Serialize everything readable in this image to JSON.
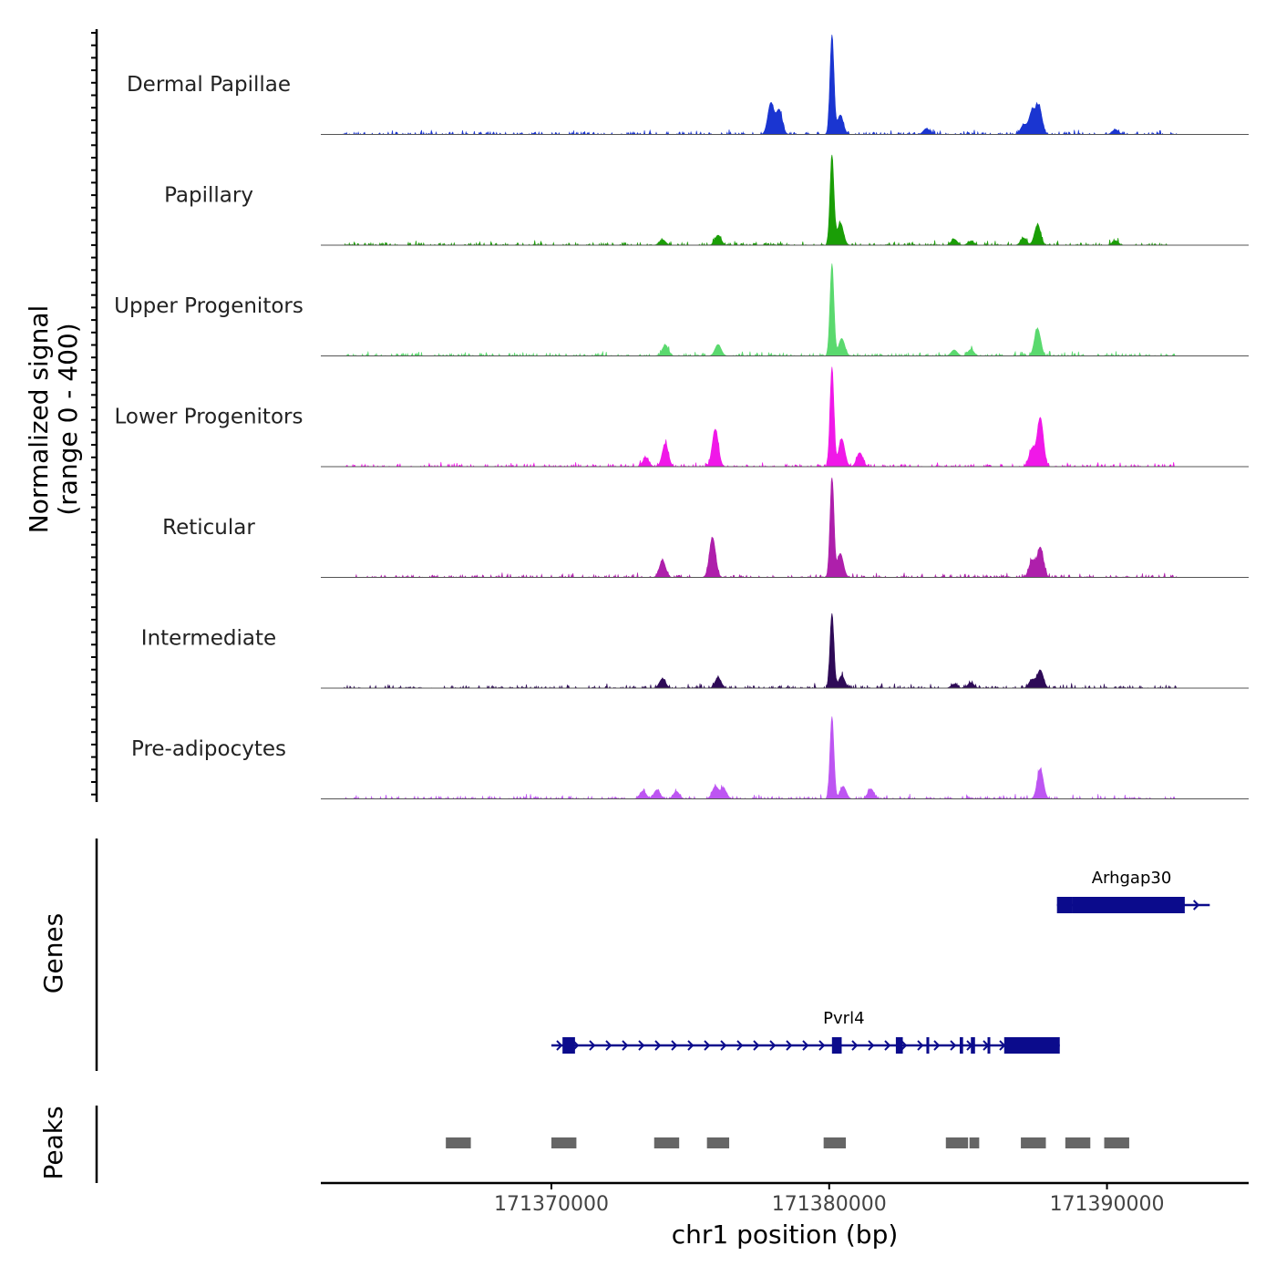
{
  "chart_data": {
    "type": "area",
    "chromosome": "chr1",
    "xlabel": "chr1 position (bp)",
    "xlim": [
      171361700,
      171395100
    ],
    "xticks": [
      171370000,
      171380000,
      171390000
    ],
    "xtick_labels": [
      "171370000",
      "171380000",
      "171390000"
    ],
    "ylabel_line1": "Normalized signal",
    "ylabel_line2": "(range 0 - 400)",
    "ylim": [
      0,
      400
    ],
    "tracks": [
      {
        "name": "Dermal Papillae",
        "color": "#1a35d1",
        "peaks": [
          [
            171377900,
            126
          ],
          [
            171378200,
            98
          ],
          [
            171380100,
            400
          ],
          [
            171380400,
            78
          ],
          [
            171383500,
            24
          ],
          [
            171387000,
            38
          ],
          [
            171387300,
            90
          ],
          [
            171387550,
            112
          ],
          [
            171390300,
            20
          ]
        ]
      },
      {
        "name": "Papillary",
        "color": "#1a9e06",
        "peaks": [
          [
            171374000,
            22
          ],
          [
            171376000,
            40
          ],
          [
            171380100,
            360
          ],
          [
            171380400,
            90
          ],
          [
            171384500,
            24
          ],
          [
            171385100,
            16
          ],
          [
            171387000,
            26
          ],
          [
            171387500,
            80
          ],
          [
            171390300,
            18
          ]
        ]
      },
      {
        "name": "Upper Progenitors",
        "color": "#5ad96e",
        "peaks": [
          [
            171374100,
            44
          ],
          [
            171376000,
            46
          ],
          [
            171380100,
            370
          ],
          [
            171380450,
            70
          ],
          [
            171384500,
            24
          ],
          [
            171385100,
            26
          ],
          [
            171387500,
            110
          ]
        ]
      },
      {
        "name": "Lower Progenitors",
        "color": "#f018e8",
        "peaks": [
          [
            171373400,
            36
          ],
          [
            171374100,
            92
          ],
          [
            171375900,
            150
          ],
          [
            171380100,
            400
          ],
          [
            171380450,
            112
          ],
          [
            171381100,
            56
          ],
          [
            171387300,
            70
          ],
          [
            171387600,
            196
          ]
        ]
      },
      {
        "name": "Reticular",
        "color": "#ae1fab",
        "peaks": [
          [
            171374000,
            68
          ],
          [
            171375800,
            160
          ],
          [
            171380100,
            400
          ],
          [
            171380400,
            96
          ],
          [
            171387300,
            66
          ],
          [
            171387600,
            120
          ]
        ]
      },
      {
        "name": "Intermediate",
        "color": "#2e0a57",
        "peaks": [
          [
            171374000,
            38
          ],
          [
            171376000,
            42
          ],
          [
            171380100,
            300
          ],
          [
            171380450,
            50
          ],
          [
            171384500,
            16
          ],
          [
            171385100,
            22
          ],
          [
            171387300,
            34
          ],
          [
            171387600,
            72
          ]
        ]
      },
      {
        "name": "Pre-adipocytes",
        "color": "#bd55f2",
        "peaks": [
          [
            171373300,
            32
          ],
          [
            171373800,
            36
          ],
          [
            171374500,
            30
          ],
          [
            171375900,
            50
          ],
          [
            171376200,
            40
          ],
          [
            171380100,
            330
          ],
          [
            171380500,
            50
          ],
          [
            171381500,
            40
          ],
          [
            171387600,
            120
          ]
        ]
      }
    ],
    "genes_label": "Genes",
    "genes": [
      {
        "name": "Arhgap30",
        "strand": "+",
        "start": 171388200,
        "end": 171393700,
        "exons": [
          [
            171388200,
            171388750
          ],
          [
            171388750,
            171392800
          ]
        ]
      },
      {
        "name": "Pvrl4",
        "strand": "+",
        "start": 171370000,
        "end": 171388300,
        "exons": [
          [
            171370400,
            171370850
          ],
          [
            171380100,
            171380450
          ],
          [
            171382400,
            171382650
          ],
          [
            171383500,
            171383600
          ],
          [
            171384700,
            171384820
          ],
          [
            171385100,
            171385250
          ],
          [
            171385700,
            171385780
          ],
          [
            171386300,
            171388300
          ]
        ]
      }
    ],
    "peaks_label": "Peaks",
    "peak_regions": [
      [
        171366200,
        171367100
      ],
      [
        171370000,
        171370900
      ],
      [
        171373700,
        171374600
      ],
      [
        171375600,
        171376400
      ],
      [
        171379800,
        171380600
      ],
      [
        171384200,
        171385000
      ],
      [
        171385050,
        171385400
      ],
      [
        171386900,
        171387800
      ],
      [
        171388500,
        171389400
      ],
      [
        171389900,
        171390800
      ]
    ]
  }
}
